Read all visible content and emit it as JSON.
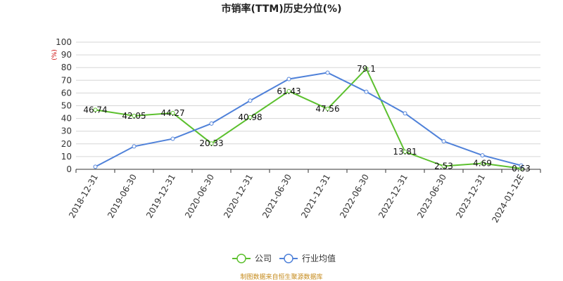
{
  "chart_data": {
    "type": "line",
    "title": "市销率(TTM)历史分位(%)",
    "ylabel": "(%)",
    "categories": [
      "2018-12-31",
      "2019-06-30",
      "2019-12-31",
      "2020-06-30",
      "2020-12-31",
      "2021-06-30",
      "2021-12-31",
      "2022-06-30",
      "2022-12-31",
      "2023-06-30",
      "2023-12-31",
      "2024-01-12E"
    ],
    "ylim": [
      0,
      100
    ],
    "yticks": [
      0,
      10,
      20,
      30,
      40,
      50,
      60,
      70,
      80,
      90,
      100
    ],
    "grid": true,
    "legend_position": "bottom-center",
    "series": [
      {
        "name": "公司",
        "color": "#5cc02e",
        "values": [
          46.74,
          42.05,
          44.27,
          20.33,
          40.98,
          61.43,
          47.56,
          79.1,
          13.81,
          2.53,
          4.69,
          0.63
        ],
        "labels": [
          "46.74",
          "42.05",
          "44.27",
          "20.33",
          "40.98",
          "61.43",
          "47.56",
          "79.1",
          "13.81",
          "2.53",
          "4.69",
          "0.63"
        ]
      },
      {
        "name": "行业均值",
        "color": "#4f81d9",
        "values": [
          2,
          18,
          24,
          36,
          54,
          71,
          76,
          61,
          44,
          22,
          11,
          3
        ]
      }
    ],
    "source": "制图数据来自恒生聚源数据库"
  }
}
